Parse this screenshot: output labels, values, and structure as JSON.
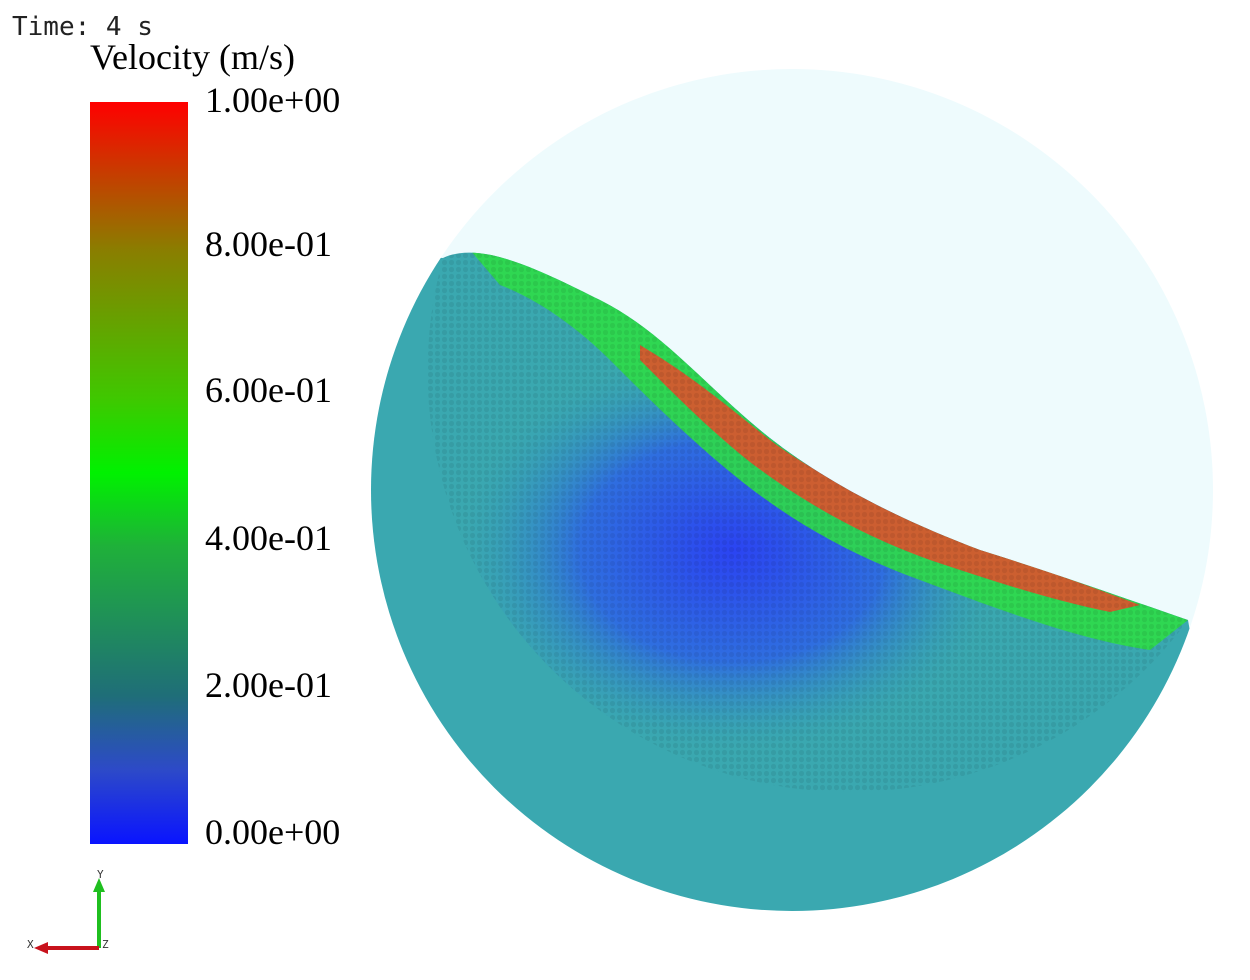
{
  "overlay": {
    "time_text": "Time: 4 s"
  },
  "legend": {
    "title": "Velocity (m/s)",
    "ticks": [
      "1.00e+00",
      "8.00e-01",
      "6.00e-01",
      "4.00e-01",
      "2.00e-01",
      "0.00e+00"
    ],
    "range": [
      0,
      1
    ],
    "colors": {
      "max": "#ff0000",
      "mid": "#00f100",
      "min": "#0a14ff"
    }
  },
  "scene": {
    "background_disc_color": "#eefbfd",
    "bulk_particle_color": "#3aa8b0",
    "core_particle_color": "#2f63e6",
    "fast_layer_color": "#28e63a",
    "fastest_layer_color": "#e8442a"
  },
  "axes_triad": {
    "x_label": "X",
    "y_label": "Y",
    "z_label": "Z"
  }
}
